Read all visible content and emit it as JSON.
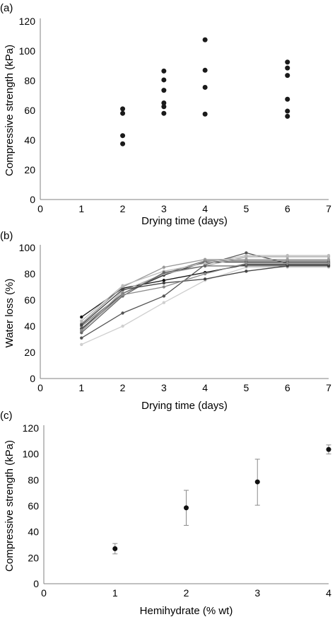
{
  "chart_data": [
    {
      "panel": "(a)",
      "type": "scatter",
      "xlabel": "Drying time (days)",
      "ylabel": "Compressive strength (kPa)",
      "xlim": [
        0,
        7
      ],
      "ylim": [
        0,
        120
      ],
      "xticks": [
        0,
        1,
        2,
        3,
        4,
        5,
        6,
        7
      ],
      "yticks": [
        0,
        20,
        40,
        60,
        80,
        100,
        120
      ],
      "grid": false,
      "marker_color": "#1a1a1a",
      "points": [
        {
          "x": 2,
          "y": 61
        },
        {
          "x": 2,
          "y": 58
        },
        {
          "x": 2,
          "y": 43
        },
        {
          "x": 2,
          "y": 37.5
        },
        {
          "x": 3,
          "y": 86.5
        },
        {
          "x": 3,
          "y": 80.5
        },
        {
          "x": 3,
          "y": 73.5
        },
        {
          "x": 3,
          "y": 65
        },
        {
          "x": 3,
          "y": 62.5
        },
        {
          "x": 3,
          "y": 58
        },
        {
          "x": 4,
          "y": 107.5
        },
        {
          "x": 4,
          "y": 87
        },
        {
          "x": 4,
          "y": 75.5
        },
        {
          "x": 4,
          "y": 57.5
        },
        {
          "x": 6,
          "y": 92.5
        },
        {
          "x": 6,
          "y": 88.5
        },
        {
          "x": 6,
          "y": 83.5
        },
        {
          "x": 6,
          "y": 67.5
        },
        {
          "x": 6,
          "y": 59.5
        },
        {
          "x": 6,
          "y": 56
        }
      ]
    },
    {
      "panel": "(b)",
      "type": "line",
      "xlabel": "Drying time (days)",
      "ylabel": "Water loss (%)",
      "xlim": [
        0,
        7
      ],
      "ylim": [
        0,
        100
      ],
      "xticks": [
        0,
        1,
        2,
        3,
        4,
        5,
        6,
        7
      ],
      "yticks": [
        0,
        20,
        40,
        60,
        80,
        100
      ],
      "grid": false,
      "x": [
        1,
        2,
        3,
        4,
        5,
        6,
        7
      ],
      "series": [
        {
          "color": "#111111",
          "values": [
            47,
            69,
            75,
            81,
            87,
            87,
            87
          ]
        },
        {
          "color": "#333333",
          "values": [
            38,
            65,
            79,
            89,
            89,
            89,
            89
          ]
        },
        {
          "color": "#555555",
          "values": [
            31,
            50,
            63,
            87,
            96,
            88,
            88
          ]
        },
        {
          "color": "#777777",
          "values": [
            40,
            65,
            80,
            90,
            90,
            90,
            90
          ]
        },
        {
          "color": "#999999",
          "values": [
            42,
            70,
            85,
            91,
            91,
            91,
            91
          ]
        },
        {
          "color": "#aaaaaa",
          "values": [
            36,
            67,
            80,
            86,
            93,
            93,
            93
          ]
        },
        {
          "color": "#bbbbbb",
          "values": [
            44,
            71,
            82,
            88,
            94,
            94,
            94
          ]
        },
        {
          "color": "#cfcfcf",
          "values": [
            26,
            40,
            58,
            75,
            85,
            85,
            85
          ]
        },
        {
          "color": "#666666",
          "values": [
            35,
            63,
            81,
            86,
            86,
            86,
            86
          ]
        },
        {
          "color": "#444444",
          "values": [
            41,
            68,
            73,
            76,
            82,
            86,
            86
          ]
        },
        {
          "color": "#8a8a8a",
          "values": [
            37,
            64,
            70,
            80,
            88,
            88,
            88
          ]
        }
      ]
    },
    {
      "panel": "(c)",
      "type": "scatter",
      "xlabel": "Hemihydrate (% wt)",
      "ylabel": "Compressive strength (kPa)",
      "xlim": [
        0,
        4
      ],
      "ylim": [
        0,
        120
      ],
      "xticks": [
        0,
        1,
        2,
        3,
        4
      ],
      "yticks": [
        0,
        20,
        40,
        60,
        80,
        100,
        120
      ],
      "grid": false,
      "marker_color": "#111111",
      "errorbar_color": "#8a8a8a",
      "points": [
        {
          "x": 1,
          "y": 27,
          "yerr_low": 23,
          "yerr_high": 31
        },
        {
          "x": 2,
          "y": 58.5,
          "yerr_low": 45,
          "yerr_high": 72
        },
        {
          "x": 3,
          "y": 78.5,
          "yerr_low": 60.5,
          "yerr_high": 96
        },
        {
          "x": 4,
          "y": 103.5,
          "yerr_low": 100,
          "yerr_high": 107
        }
      ]
    }
  ]
}
